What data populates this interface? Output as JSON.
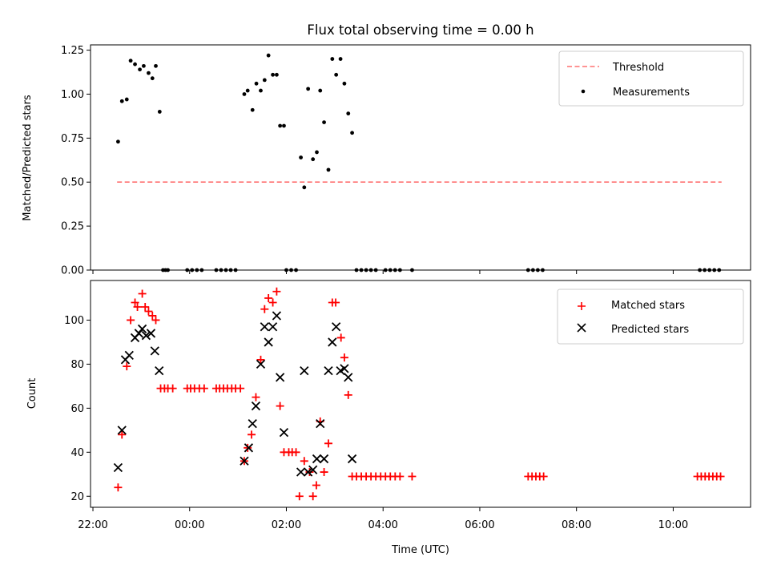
{
  "chart_data": [
    {
      "type": "scatter",
      "title": "Flux total observing time = 0.00 h",
      "xlabel": "",
      "ylabel": "Matched/Predicted stars",
      "xlim": [
        -2.05,
        11.6
      ],
      "ylim": [
        0,
        1.28
      ],
      "yticks": [
        0.0,
        0.25,
        0.5,
        0.75,
        1.0,
        1.25
      ],
      "ytick_labels": [
        "0.00",
        "0.25",
        "0.50",
        "0.75",
        "1.00",
        "1.25"
      ],
      "x_units": "hours from 00:00 UTC",
      "threshold": {
        "name": "Threshold",
        "value": 0.5,
        "x_range": [
          -1.5,
          11.0
        ],
        "color": "#ff7070"
      },
      "legend": {
        "position": "top-right",
        "labels": [
          "Threshold",
          "Measurements"
        ]
      },
      "series": [
        {
          "name": "Measurements",
          "color": "#000000",
          "points": [
            [
              -1.48,
              0.73
            ],
            [
              -1.4,
              0.96
            ],
            [
              -1.3,
              0.97
            ],
            [
              -1.22,
              1.19
            ],
            [
              -1.13,
              1.17
            ],
            [
              -1.03,
              1.14
            ],
            [
              -0.95,
              1.16
            ],
            [
              -0.85,
              1.12
            ],
            [
              -0.77,
              1.09
            ],
            [
              -0.7,
              1.16
            ],
            [
              -0.62,
              0.9
            ],
            [
              -0.55,
              0.0
            ],
            [
              -0.5,
              0.0
            ],
            [
              -0.45,
              0.0
            ],
            [
              -0.05,
              0.0
            ],
            [
              0.05,
              0.0
            ],
            [
              0.15,
              0.0
            ],
            [
              0.25,
              0.0
            ],
            [
              0.55,
              0.0
            ],
            [
              0.65,
              0.0
            ],
            [
              0.75,
              0.0
            ],
            [
              0.85,
              0.0
            ],
            [
              0.95,
              0.0
            ],
            [
              1.13,
              1.0
            ],
            [
              1.2,
              1.02
            ],
            [
              1.3,
              0.91
            ],
            [
              1.38,
              1.06
            ],
            [
              1.47,
              1.02
            ],
            [
              1.55,
              1.08
            ],
            [
              1.63,
              1.22
            ],
            [
              1.72,
              1.11
            ],
            [
              1.8,
              1.11
            ],
            [
              1.87,
              0.82
            ],
            [
              1.95,
              0.82
            ],
            [
              2.0,
              0.0
            ],
            [
              2.1,
              0.0
            ],
            [
              2.2,
              0.0
            ],
            [
              2.3,
              0.64
            ],
            [
              2.37,
              0.47
            ],
            [
              2.45,
              1.03
            ],
            [
              2.55,
              0.63
            ],
            [
              2.63,
              0.67
            ],
            [
              2.7,
              1.02
            ],
            [
              2.78,
              0.84
            ],
            [
              2.87,
              0.57
            ],
            [
              2.95,
              1.2
            ],
            [
              3.03,
              1.11
            ],
            [
              3.12,
              1.2
            ],
            [
              3.2,
              1.06
            ],
            [
              3.28,
              0.89
            ],
            [
              3.36,
              0.78
            ],
            [
              3.45,
              0.0
            ],
            [
              3.55,
              0.0
            ],
            [
              3.65,
              0.0
            ],
            [
              3.75,
              0.0
            ],
            [
              3.85,
              0.0
            ],
            [
              4.05,
              0.0
            ],
            [
              4.15,
              0.0
            ],
            [
              4.25,
              0.0
            ],
            [
              4.35,
              0.0
            ],
            [
              4.6,
              0.0
            ],
            [
              7.0,
              0.0
            ],
            [
              7.1,
              0.0
            ],
            [
              7.2,
              0.0
            ],
            [
              7.3,
              0.0
            ],
            [
              10.55,
              0.0
            ],
            [
              10.65,
              0.0
            ],
            [
              10.75,
              0.0
            ],
            [
              10.85,
              0.0
            ],
            [
              10.95,
              0.0
            ]
          ]
        }
      ]
    },
    {
      "type": "scatter",
      "title": "",
      "xlabel": "Time (UTC)",
      "ylabel": "Count",
      "xlim": [
        -2.05,
        11.6
      ],
      "ylim": [
        15,
        118
      ],
      "yticks": [
        20,
        40,
        60,
        80,
        100
      ],
      "ytick_labels": [
        "20",
        "40",
        "60",
        "80",
        "100"
      ],
      "xticks": [
        -2,
        0,
        2,
        4,
        6,
        8,
        10
      ],
      "xtick_labels": [
        "22:00",
        "00:00",
        "02:00",
        "04:00",
        "06:00",
        "08:00",
        "10:00"
      ],
      "legend": {
        "position": "top-right",
        "labels": [
          "Matched stars",
          "Predicted stars"
        ]
      },
      "series": [
        {
          "name": "Matched stars",
          "marker": "plus",
          "color": "#ff0000",
          "points": [
            [
              -1.48,
              24
            ],
            [
              -1.4,
              48
            ],
            [
              -1.3,
              79
            ],
            [
              -1.22,
              100
            ],
            [
              -1.13,
              108
            ],
            [
              -1.08,
              106
            ],
            [
              -0.98,
              112
            ],
            [
              -0.92,
              106
            ],
            [
              -0.85,
              104
            ],
            [
              -0.77,
              102
            ],
            [
              -0.7,
              100
            ],
            [
              -0.6,
              69
            ],
            [
              -0.52,
              69
            ],
            [
              -0.45,
              69
            ],
            [
              -0.35,
              69
            ],
            [
              -0.05,
              69
            ],
            [
              0.02,
              69
            ],
            [
              0.1,
              69
            ],
            [
              0.2,
              69
            ],
            [
              0.3,
              69
            ],
            [
              0.55,
              69
            ],
            [
              0.62,
              69
            ],
            [
              0.7,
              69
            ],
            [
              0.78,
              69
            ],
            [
              0.87,
              69
            ],
            [
              0.95,
              69
            ],
            [
              1.05,
              69
            ],
            [
              1.13,
              36
            ],
            [
              1.2,
              42
            ],
            [
              1.28,
              48
            ],
            [
              1.37,
              65
            ],
            [
              1.47,
              82
            ],
            [
              1.55,
              105
            ],
            [
              1.63,
              110
            ],
            [
              1.72,
              108
            ],
            [
              1.8,
              113
            ],
            [
              1.87,
              61
            ],
            [
              1.95,
              40
            ],
            [
              2.05,
              40
            ],
            [
              2.12,
              40
            ],
            [
              2.2,
              40
            ],
            [
              2.27,
              20
            ],
            [
              2.37,
              36
            ],
            [
              2.48,
              31
            ],
            [
              2.55,
              20
            ],
            [
              2.62,
              25
            ],
            [
              2.7,
              54
            ],
            [
              2.78,
              31
            ],
            [
              2.87,
              44
            ],
            [
              2.95,
              108
            ],
            [
              3.02,
              108
            ],
            [
              3.13,
              92
            ],
            [
              3.2,
              83
            ],
            [
              3.28,
              66
            ],
            [
              3.36,
              29
            ],
            [
              3.45,
              29
            ],
            [
              3.55,
              29
            ],
            [
              3.65,
              29
            ],
            [
              3.75,
              29
            ],
            [
              3.85,
              29
            ],
            [
              3.95,
              29
            ],
            [
              4.05,
              29
            ],
            [
              4.15,
              29
            ],
            [
              4.25,
              29
            ],
            [
              4.35,
              29
            ],
            [
              4.6,
              29
            ],
            [
              7.0,
              29
            ],
            [
              7.08,
              29
            ],
            [
              7.16,
              29
            ],
            [
              7.24,
              29
            ],
            [
              7.32,
              29
            ],
            [
              10.5,
              29
            ],
            [
              10.58,
              29
            ],
            [
              10.66,
              29
            ],
            [
              10.74,
              29
            ],
            [
              10.82,
              29
            ],
            [
              10.9,
              29
            ],
            [
              10.98,
              29
            ]
          ]
        },
        {
          "name": "Predicted stars",
          "marker": "x",
          "color": "#000000",
          "points": [
            [
              -1.48,
              33
            ],
            [
              -1.4,
              50
            ],
            [
              -1.33,
              82
            ],
            [
              -1.25,
              84
            ],
            [
              -1.13,
              92
            ],
            [
              -1.05,
              94
            ],
            [
              -0.98,
              96
            ],
            [
              -0.9,
              93
            ],
            [
              -0.8,
              94
            ],
            [
              -0.72,
              86
            ],
            [
              -0.63,
              77
            ],
            [
              1.13,
              36
            ],
            [
              1.22,
              42
            ],
            [
              1.3,
              53
            ],
            [
              1.37,
              61
            ],
            [
              1.47,
              80
            ],
            [
              1.55,
              97
            ],
            [
              1.63,
              90
            ],
            [
              1.72,
              97
            ],
            [
              1.8,
              102
            ],
            [
              1.87,
              74
            ],
            [
              1.95,
              49
            ],
            [
              2.3,
              31
            ],
            [
              2.37,
              77
            ],
            [
              2.45,
              31
            ],
            [
              2.55,
              32
            ],
            [
              2.63,
              37
            ],
            [
              2.7,
              53
            ],
            [
              2.78,
              37
            ],
            [
              2.87,
              77
            ],
            [
              2.95,
              90
            ],
            [
              3.03,
              97
            ],
            [
              3.12,
              77
            ],
            [
              3.2,
              78
            ],
            [
              3.28,
              74
            ],
            [
              3.36,
              37
            ]
          ]
        }
      ]
    }
  ]
}
